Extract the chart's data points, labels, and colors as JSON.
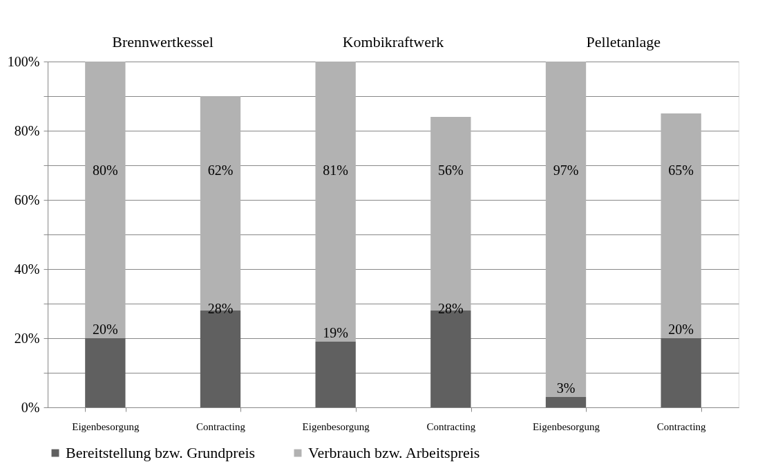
{
  "chart_data": {
    "type": "bar",
    "stacked": true,
    "categories": [
      "Eigenbesorgung",
      "Contracting",
      "Eigenbesorgung",
      "Contracting",
      "Eigenbesorgung",
      "Contracting"
    ],
    "annotations": [
      "Brennwertkessel",
      "Kombikraftwerk",
      "Pelletanlage"
    ],
    "series": [
      {
        "name": "Bereitstellung bzw. Grundpreis",
        "color": "#606060",
        "values": [
          20,
          28,
          19,
          28,
          3,
          20
        ],
        "value_labels": [
          "20%",
          "28%",
          "19%",
          "28%",
          "3%",
          "20%"
        ]
      },
      {
        "name": "Verbrauch bzw. Arbeitspreis",
        "color": "#b2b2b2",
        "values": [
          80,
          62,
          81,
          56,
          97,
          65
        ],
        "value_labels": [
          "80%",
          "62%",
          "81%",
          "56%",
          "97%",
          "65%"
        ]
      }
    ],
    "ylim": [
      0,
      100
    ],
    "yticks": [
      {
        "value": 0,
        "label": "0%"
      },
      {
        "value": 10,
        "label": null
      },
      {
        "value": 20,
        "label": "20%"
      },
      {
        "value": 30,
        "label": null
      },
      {
        "value": 40,
        "label": "40%"
      },
      {
        "value": 50,
        "label": null
      },
      {
        "value": 60,
        "label": "60%"
      },
      {
        "value": 70,
        "label": null
      },
      {
        "value": 80,
        "label": "80%"
      },
      {
        "value": 90,
        "label": null
      },
      {
        "value": 100,
        "label": "100%"
      }
    ],
    "grid": "y",
    "legend": "bottom"
  }
}
